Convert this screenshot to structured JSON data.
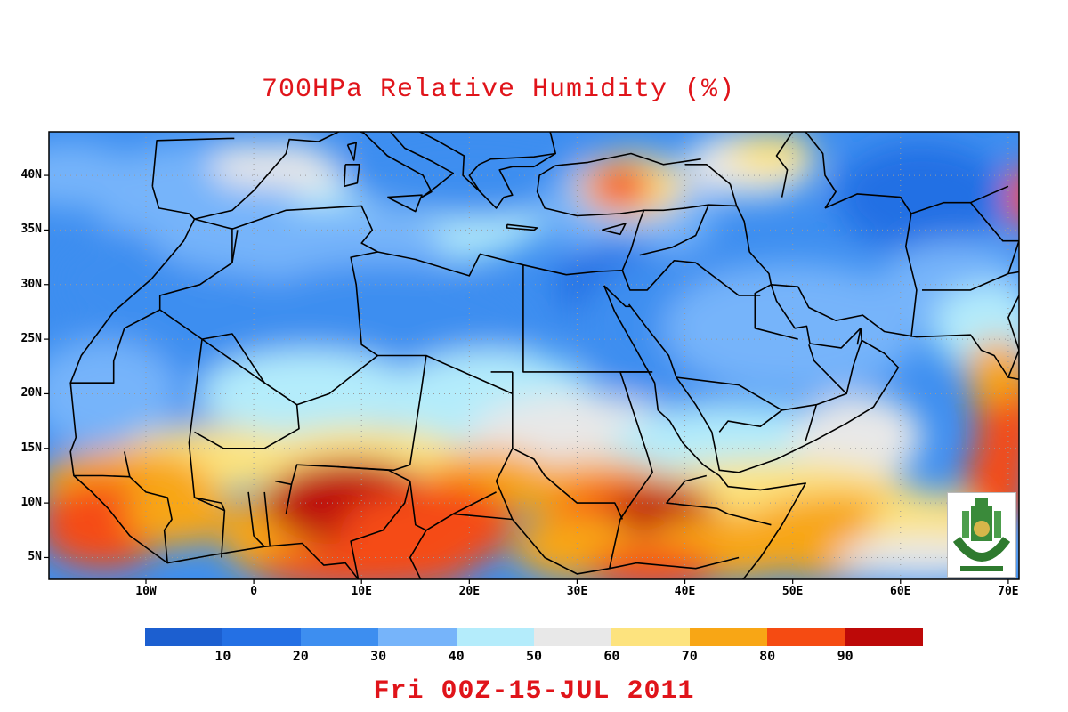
{
  "title": "700HPa Relative Humidity (%)",
  "valid_time": "Fri 00Z-15-JUL 2011",
  "map": {
    "region": "North Africa / Middle East",
    "lat_range": [
      3,
      44
    ],
    "lon_range": [
      -19,
      71
    ],
    "lat_ticks": [
      {
        "value": 40,
        "label": "40N"
      },
      {
        "value": 35,
        "label": "35N"
      },
      {
        "value": 30,
        "label": "30N"
      },
      {
        "value": 25,
        "label": "25N"
      },
      {
        "value": 20,
        "label": "20N"
      },
      {
        "value": 15,
        "label": "15N"
      },
      {
        "value": 10,
        "label": "10N"
      },
      {
        "value": 5,
        "label": "5N"
      }
    ],
    "lon_ticks": [
      {
        "value": -10,
        "label": "10W"
      },
      {
        "value": 0,
        "label": "0"
      },
      {
        "value": 10,
        "label": "10E"
      },
      {
        "value": 20,
        "label": "20E"
      },
      {
        "value": 30,
        "label": "30E"
      },
      {
        "value": 40,
        "label": "40E"
      },
      {
        "value": 50,
        "label": "50E"
      },
      {
        "value": 60,
        "label": "60E"
      },
      {
        "value": 70,
        "label": "70E"
      }
    ],
    "gridlines": "dotted",
    "coastlines": true,
    "country_borders": true
  },
  "colorbar": {
    "labels": [
      "10",
      "20",
      "30",
      "40",
      "50",
      "60",
      "70",
      "80",
      "90"
    ],
    "colors": [
      "#1c5fd0",
      "#2470e4",
      "#3d8ef0",
      "#76b4fa",
      "#b4ecfb",
      "#e8e8e8",
      "#fde37e",
      "#f8a615",
      "#f54b12",
      "#bd0908"
    ]
  },
  "logo": {
    "name": "university-seal-logo"
  }
}
